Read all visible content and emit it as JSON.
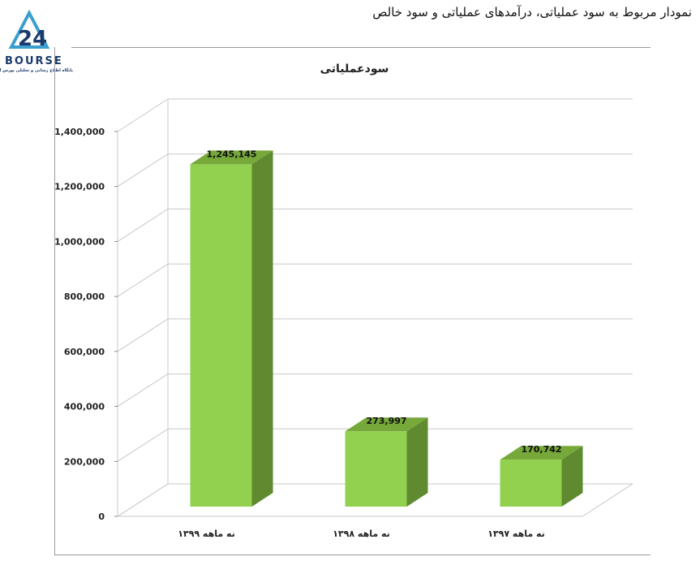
{
  "header": {
    "title": "نمودار مربوط به سود عملیاتی، درآمدهای عملیاتی و سود خالص"
  },
  "logo": {
    "wordmark": "BOURSE",
    "tagline": "پایگاه اطلاع رسانی و تحلیلی بورس ایران",
    "numeral": "24"
  },
  "colors": {
    "bar_front": "#92d050",
    "bar_side": "#5f8a30",
    "bar_top": "#76a83a",
    "grid": "#c8c8c8",
    "logo_blue": "#3a9fd0",
    "logo_navy": "#1b3a6b"
  },
  "chart_data": {
    "type": "bar",
    "title": "سودعملیاتی",
    "categories": [
      "نه ماهه ۱۳۹۹",
      "نه ماهه ۱۳۹۸",
      "نه ماهه ۱۳۹۷"
    ],
    "values": [
      1245145,
      273997,
      170742
    ],
    "data_labels": [
      "1,245,145",
      "273,997",
      "170,742"
    ],
    "ylim": [
      0,
      1400000
    ],
    "yticks": [
      0,
      200000,
      400000,
      600000,
      800000,
      1000000,
      1200000,
      1400000
    ],
    "ytick_labels": [
      "0",
      "200,000",
      "400,000",
      "600,000",
      "800,000",
      "1,000,000",
      "1,200,000",
      "1,400,000"
    ],
    "grid": true,
    "style": "3d-column"
  }
}
